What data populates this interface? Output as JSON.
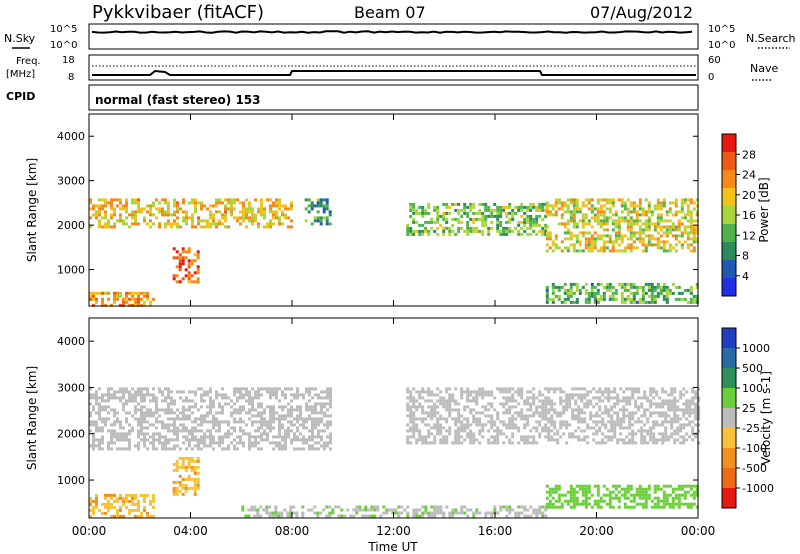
{
  "header": {
    "station": "Pykkvibaer (fitACF)",
    "beam": "Beam 07",
    "date": "07/Aug/2012"
  },
  "left_labels": {
    "nsky": "N.Sky",
    "freq_line1": "Freq.",
    "freq_line2": "[MHz]",
    "cpid": "CPID"
  },
  "right_labels": {
    "nsearch": "N.Search",
    "nave": "Nave"
  },
  "cpid_text": "normal (fast stereo) 153",
  "noise_axis": {
    "left_top": "10^5",
    "left_bottom": "10^0",
    "right_top": "10^5",
    "right_bottom": "10^0"
  },
  "freq_axis": {
    "left": [
      "18",
      "8"
    ],
    "right": [
      "60",
      "0"
    ]
  },
  "x_axis": {
    "title": "Time UT",
    "ticks": [
      "00:00",
      "04:00",
      "08:00",
      "12:00",
      "16:00",
      "20:00",
      "00:00"
    ]
  },
  "chart_data": [
    {
      "type": "heatmap",
      "panel": "power",
      "ylabel": "Slant Range [km]",
      "y_ticks": [
        "4000",
        "3000",
        "2000",
        "1000"
      ],
      "ylim": [
        180,
        4500
      ],
      "colorbar_label": "Power [dB]",
      "colorbar_ticks": [
        "28",
        "24",
        "20",
        "16",
        "12",
        "8",
        "4"
      ],
      "colors": [
        "#1f2fe6",
        "#2158b4",
        "#2d8a5a",
        "#4fb24a",
        "#a8d63a",
        "#f2c21c",
        "#f58a1a",
        "#ee5a14",
        "#e41a10"
      ],
      "regions": [
        {
          "t": [
            0.0,
            8.0
          ],
          "r": [
            1950,
            2600
          ],
          "value": 20
        },
        {
          "t": [
            0.0,
            2.5
          ],
          "r": [
            200,
            500
          ],
          "value": 22
        },
        {
          "t": [
            3.3,
            4.3
          ],
          "r": [
            700,
            1500
          ],
          "value": 26
        },
        {
          "t": [
            8.5,
            9.5
          ],
          "r": [
            2000,
            2600
          ],
          "value": 10
        },
        {
          "t": [
            12.5,
            18.0
          ],
          "r": [
            1800,
            2500
          ],
          "value": 14
        },
        {
          "t": [
            18.0,
            24.0
          ],
          "r": [
            1400,
            2600
          ],
          "value": 18
        },
        {
          "t": [
            18.0,
            24.0
          ],
          "r": [
            250,
            700
          ],
          "value": 12
        }
      ]
    },
    {
      "type": "heatmap",
      "panel": "velocity",
      "ylabel": "Slant Range [km]",
      "y_ticks": [
        "4000",
        "3000",
        "2000",
        "1000"
      ],
      "ylim": [
        180,
        4500
      ],
      "colorbar_label": "Velocity [m s-1]",
      "colorbar_ticks": [
        "1000",
        "500",
        "100",
        "25",
        "-25",
        "-100",
        "-500",
        "-1000"
      ],
      "colors": [
        "#1f3fc0",
        "#2a6aa6",
        "#2f8f58",
        "#6bcf3a",
        "#bcbcbc",
        "#f5c23a",
        "#f0901f",
        "#ee6a14",
        "#e41a10"
      ],
      "regions": [
        {
          "t": [
            0.0,
            9.5
          ],
          "r": [
            1700,
            3000
          ],
          "value": 0
        },
        {
          "t": [
            0.0,
            2.5
          ],
          "r": [
            200,
            700
          ],
          "value": -300
        },
        {
          "t": [
            3.3,
            4.3
          ],
          "r": [
            700,
            1500
          ],
          "value": -300
        },
        {
          "t": [
            6.0,
            18.0
          ],
          "r": [
            250,
            450
          ],
          "value": 80
        },
        {
          "t": [
            12.5,
            24.0
          ],
          "r": [
            1800,
            3000
          ],
          "value": 0
        },
        {
          "t": [
            18.0,
            24.0
          ],
          "r": [
            400,
            900
          ],
          "value": 200
        }
      ]
    }
  ]
}
